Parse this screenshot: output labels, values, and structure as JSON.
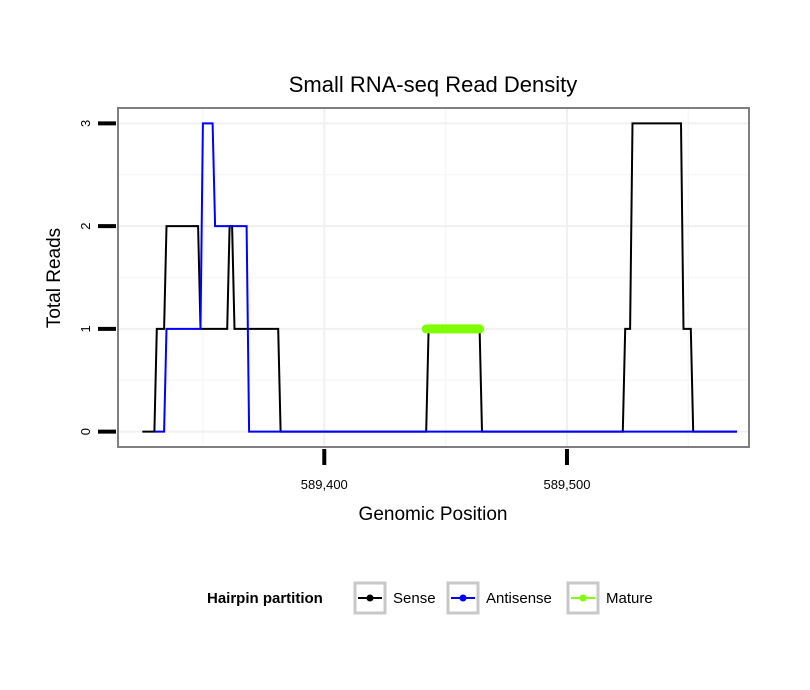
{
  "chart_data": {
    "type": "line",
    "title": "Small RNA-seq Read Density",
    "xlabel": "Genomic Position",
    "ylabel": "Total Reads",
    "xlim": [
      589315,
      589575
    ],
    "ylim": [
      -0.15,
      3.15
    ],
    "x_ticks": [
      589400,
      589500
    ],
    "x_tick_labels": [
      "589,400",
      "589,500"
    ],
    "y_ticks": [
      0,
      1,
      2,
      3
    ],
    "y_tick_labels": [
      "0",
      "1",
      "2",
      "3"
    ],
    "grid": true,
    "legend": {
      "title": "Hairpin partition",
      "position": "bottom"
    },
    "series": [
      {
        "name": "Sense",
        "color": "#000000",
        "x": [
          589325,
          589330,
          589331,
          589334,
          589335,
          589348,
          589349,
          589360,
          589361,
          589362,
          589363,
          589381,
          589382,
          589442,
          589443,
          589464,
          589465,
          589523,
          589524,
          589526,
          589527,
          589547,
          589548,
          589551,
          589552,
          589570
        ],
        "y": [
          0,
          0,
          1,
          1,
          2,
          2,
          1,
          1,
          2,
          2,
          1,
          1,
          0,
          0,
          1,
          1,
          0,
          0,
          1,
          1,
          3,
          3,
          1,
          1,
          0,
          0
        ]
      },
      {
        "name": "Antisense",
        "color": "#0000ff",
        "x": [
          589330,
          589334,
          589335,
          589349,
          589350,
          589354,
          589355,
          589368,
          589369,
          589570
        ],
        "y": [
          0,
          0,
          1,
          1,
          3,
          3,
          2,
          2,
          0,
          0
        ]
      },
      {
        "name": "Mature",
        "color": "#7fff00",
        "x": [
          589442,
          589464
        ],
        "y": [
          1,
          1
        ]
      }
    ]
  }
}
